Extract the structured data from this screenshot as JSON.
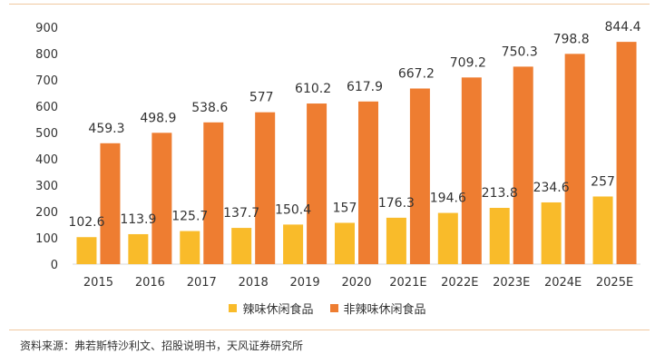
{
  "chart_data": {
    "type": "bar",
    "categories": [
      "2015",
      "2016",
      "2017",
      "2018",
      "2019",
      "2020",
      "2021E",
      "2022E",
      "2023E",
      "2024E",
      "2025E"
    ],
    "series": [
      {
        "name": "辣味休闲食品",
        "values": [
          102.6,
          113.9,
          125.7,
          137.7,
          150.4,
          157,
          176.3,
          194.6,
          213.8,
          234.6,
          257
        ],
        "color": "#F9BB2A"
      },
      {
        "name": "非辣味休闲食品",
        "values": [
          459.3,
          498.9,
          538.6,
          577,
          610.2,
          617.9,
          667.2,
          709.2,
          750.3,
          798.8,
          844.4
        ],
        "color": "#EE7D31"
      }
    ],
    "value_labels": {
      "s0": [
        "102.6",
        "113.9",
        "125.7",
        "137.7",
        "150.4",
        "157",
        "176.3",
        "194.6",
        "213.8",
        "234.6",
        "257"
      ],
      "s1": [
        "459.3",
        "498.9",
        "538.6",
        "577",
        "610.2",
        "617.9",
        "667.2",
        "709.2",
        "750.3",
        "798.8",
        "844.4"
      ]
    },
    "ylim": [
      0,
      900
    ],
    "yticks": [
      "0",
      "100",
      "200",
      "300",
      "400",
      "500",
      "600",
      "700",
      "800",
      "900"
    ],
    "grid": false,
    "legend_position": "bottom-center"
  },
  "footer": {
    "source": "资料来源：弗若斯特沙利文、招股说明书，天风证券研究所"
  }
}
